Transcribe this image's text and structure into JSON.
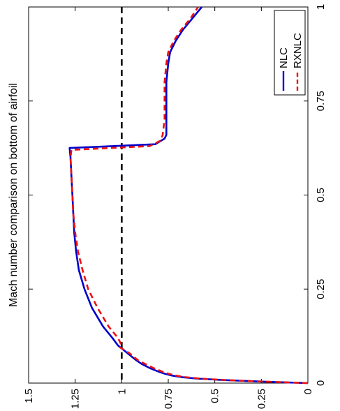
{
  "chart_data": {
    "type": "line",
    "title": "Mach number comparison on bottom of airfoil",
    "xlabel": "",
    "ylabel": "",
    "xlim": [
      0,
      1
    ],
    "ylim": [
      0,
      1.5
    ],
    "x_ticks": [
      "0",
      "0.25",
      "0.5",
      "0.75",
      "1"
    ],
    "y_ticks": [
      "0",
      "0.25",
      "0.5",
      "0.75",
      "1",
      "1.25",
      "1.5"
    ],
    "grid": false,
    "legend_position": "top-right",
    "orientation": "rotated 90° clockwise (x axis runs top-to-bottom on right edge)",
    "reference_line": {
      "y": 1.0,
      "style": "dashed",
      "color": "#000000"
    },
    "series": [
      {
        "name": "NLC",
        "color": "#0000cc",
        "style": "solid",
        "x": [
          0.0,
          0.004,
          0.008,
          0.012,
          0.016,
          0.02,
          0.025,
          0.03,
          0.04,
          0.05,
          0.06,
          0.08,
          0.1,
          0.12,
          0.15,
          0.2,
          0.25,
          0.3,
          0.35,
          0.4,
          0.45,
          0.5,
          0.55,
          0.6,
          0.625,
          0.635,
          0.65,
          0.66,
          0.7,
          0.75,
          0.8,
          0.85,
          0.88,
          0.91,
          0.94,
          0.97,
          1.0
        ],
        "y": [
          0.0,
          0.25,
          0.45,
          0.6,
          0.68,
          0.73,
          0.77,
          0.8,
          0.85,
          0.89,
          0.92,
          0.97,
          1.02,
          1.05,
          1.1,
          1.16,
          1.2,
          1.23,
          1.245,
          1.255,
          1.26,
          1.265,
          1.27,
          1.275,
          1.28,
          0.82,
          0.77,
          0.76,
          0.76,
          0.76,
          0.76,
          0.75,
          0.74,
          0.71,
          0.67,
          0.62,
          0.57
        ]
      },
      {
        "name": "RXNLC",
        "color": "#ee1111",
        "style": "dashed",
        "x": [
          0.0,
          0.004,
          0.008,
          0.012,
          0.016,
          0.02,
          0.025,
          0.03,
          0.04,
          0.05,
          0.06,
          0.08,
          0.095,
          0.1,
          0.12,
          0.15,
          0.2,
          0.25,
          0.3,
          0.35,
          0.4,
          0.45,
          0.5,
          0.55,
          0.6,
          0.62,
          0.63,
          0.645,
          0.66,
          0.7,
          0.75,
          0.8,
          0.85,
          0.88,
          0.91,
          0.94,
          0.97,
          1.0
        ],
        "y": [
          0.0,
          0.24,
          0.44,
          0.58,
          0.66,
          0.71,
          0.75,
          0.78,
          0.83,
          0.87,
          0.91,
          0.96,
          1.01,
          1.0,
          1.02,
          1.07,
          1.13,
          1.18,
          1.21,
          1.235,
          1.25,
          1.26,
          1.265,
          1.27,
          1.275,
          1.27,
          0.85,
          0.79,
          0.78,
          0.77,
          0.77,
          0.77,
          0.76,
          0.75,
          0.72,
          0.68,
          0.63,
          0.59
        ]
      }
    ]
  }
}
